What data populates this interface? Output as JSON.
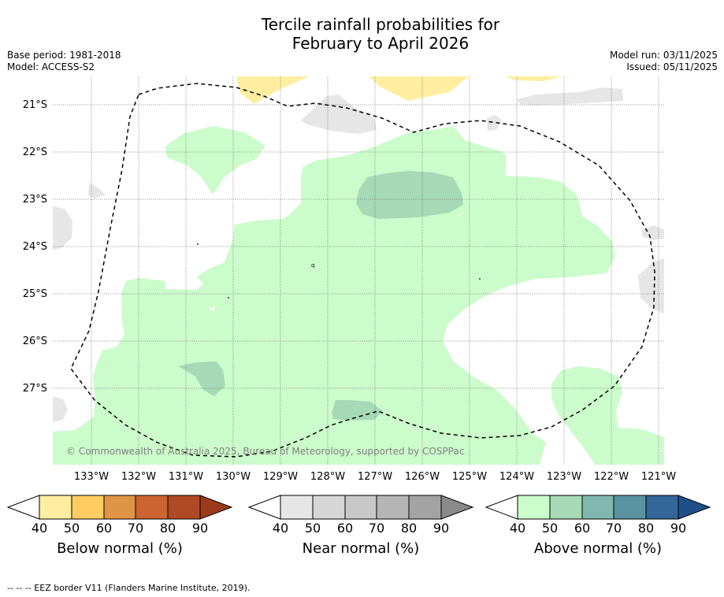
{
  "title": {
    "line1": "Tercile rainfall probabilities for",
    "line2": "February to April 2026"
  },
  "meta": {
    "base_period": "Base period: 1981-2018",
    "model": "Model: ACCESS-S2",
    "model_run": "Model run: 03/11/2025",
    "issued": "Issued: 05/11/2025"
  },
  "map": {
    "lat_labels": [
      "21°S",
      "22°S",
      "23°S",
      "24°S",
      "25°S",
      "26°S",
      "27°S"
    ],
    "lon_labels": [
      "133°W",
      "132°W",
      "131°W",
      "130°W",
      "129°W",
      "128°W",
      "127°W",
      "126°W",
      "125°W",
      "124°W",
      "123°W",
      "122°W",
      "121°W"
    ],
    "credit": "© Commonwealth of Australia 2025, Bureau of Meteorology, supported by COSPPac",
    "stray_label": "q"
  },
  "colorbars": {
    "below": {
      "title": "Below normal (%)",
      "colors": [
        "#ffeea0",
        "#fdcd62",
        "#e09445",
        "#cc6331",
        "#b04a25",
        "#9e3a1c"
      ]
    },
    "near": {
      "title": "Near normal (%)",
      "colors": [
        "#e6e6e6",
        "#d6d6d6",
        "#c8c8c8",
        "#b5b5b5",
        "#a3a3a3",
        "#8a8a8a"
      ]
    },
    "above": {
      "title": "Above normal (%)",
      "colors": [
        "#ccfccb",
        "#a6d9b5",
        "#80b8b0",
        "#5993a0",
        "#336699",
        "#1f4f8b"
      ]
    },
    "ticks": [
      "40",
      "50",
      "60",
      "70",
      "80",
      "90"
    ]
  },
  "footer": "--  --  -- EEZ border V11 (Flanders Marine Institute, 2019)."
}
